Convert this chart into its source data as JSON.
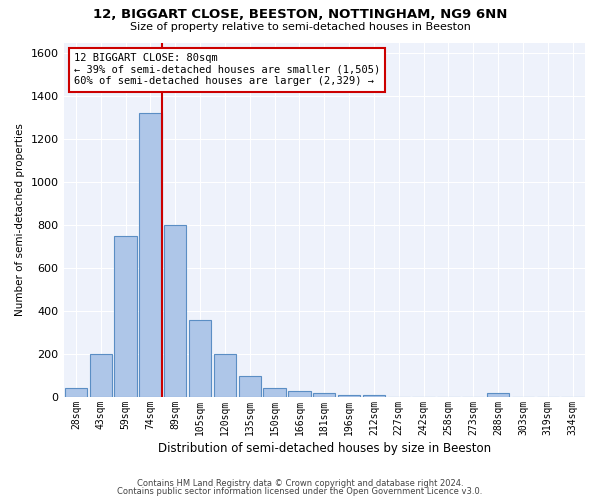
{
  "title1": "12, BIGGART CLOSE, BEESTON, NOTTINGHAM, NG9 6NN",
  "title2": "Size of property relative to semi-detached houses in Beeston",
  "xlabel": "Distribution of semi-detached houses by size in Beeston",
  "ylabel": "Number of semi-detached properties",
  "categories": [
    "28sqm",
    "43sqm",
    "59sqm",
    "74sqm",
    "89sqm",
    "105sqm",
    "120sqm",
    "135sqm",
    "150sqm",
    "166sqm",
    "181sqm",
    "196sqm",
    "212sqm",
    "227sqm",
    "242sqm",
    "258sqm",
    "273sqm",
    "288sqm",
    "303sqm",
    "319sqm",
    "334sqm"
  ],
  "values": [
    40,
    200,
    750,
    1320,
    800,
    360,
    200,
    100,
    40,
    30,
    20,
    10,
    10,
    0,
    0,
    0,
    0,
    20,
    0,
    0,
    0
  ],
  "bar_color": "#aec6e8",
  "bar_edge_color": "#5b8ec4",
  "background_color": "#eef2fb",
  "grid_color": "#ffffff",
  "vline_color": "#cc0000",
  "annotation_box_line1": "12 BIGGART CLOSE: 80sqm",
  "annotation_box_line2": "← 39% of semi-detached houses are smaller (1,505)",
  "annotation_box_line3": "60% of semi-detached houses are larger (2,329) →",
  "annotation_box_color": "#cc0000",
  "ylim": [
    0,
    1650
  ],
  "yticks": [
    0,
    200,
    400,
    600,
    800,
    1000,
    1200,
    1400,
    1600
  ],
  "footer1": "Contains HM Land Registry data © Crown copyright and database right 2024.",
  "footer2": "Contains public sector information licensed under the Open Government Licence v3.0.",
  "vline_bar_index": 3,
  "property_sqm": 80
}
